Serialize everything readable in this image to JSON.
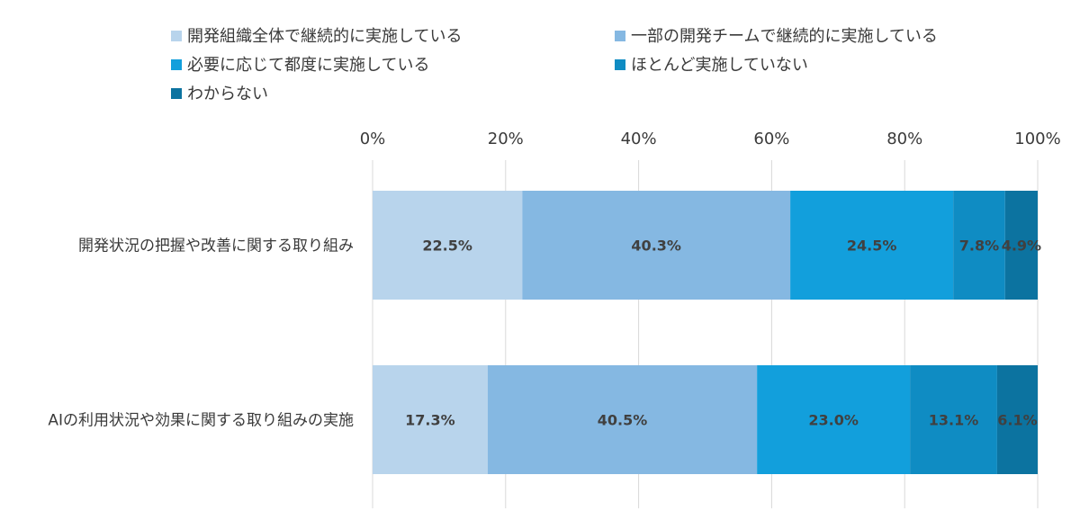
{
  "chart_data": {
    "type": "bar",
    "orientation": "horizontal",
    "stacked": "percent",
    "xlim": [
      0,
      100
    ],
    "ticks": [
      "0%",
      "20%",
      "40%",
      "60%",
      "80%",
      "100%"
    ],
    "grid": true,
    "legend_position": "top",
    "categories": [
      "開発状況の把握や改善に関する取り組み",
      "AIの利用状況や効果に関する取り組みの実施"
    ],
    "series": [
      {
        "name": "開発組織全体で継続的に実施している",
        "color": "#b8d4ec",
        "values": [
          22.5,
          17.3
        ],
        "labels": [
          "22.5%",
          "17.3%"
        ]
      },
      {
        "name": "一部の開発チームで継続的に実施している",
        "color": "#85b8e2",
        "values": [
          40.3,
          40.5
        ],
        "labels": [
          "40.3%",
          "40.5%"
        ]
      },
      {
        "name": "必要に応じて都度に実施している",
        "color": "#129fdc",
        "values": [
          24.5,
          23.0
        ],
        "labels": [
          "24.5%",
          "23.0%"
        ]
      },
      {
        "name": "ほとんど実施していない",
        "color": "#0f8cc3",
        "values": [
          7.8,
          13.1
        ],
        "labels": [
          "7.8%",
          "13.1%"
        ]
      },
      {
        "name": "わからない",
        "color": "#0c73a0",
        "values": [
          4.9,
          6.1
        ],
        "labels": [
          "4.9%",
          "6.1%"
        ]
      }
    ]
  }
}
